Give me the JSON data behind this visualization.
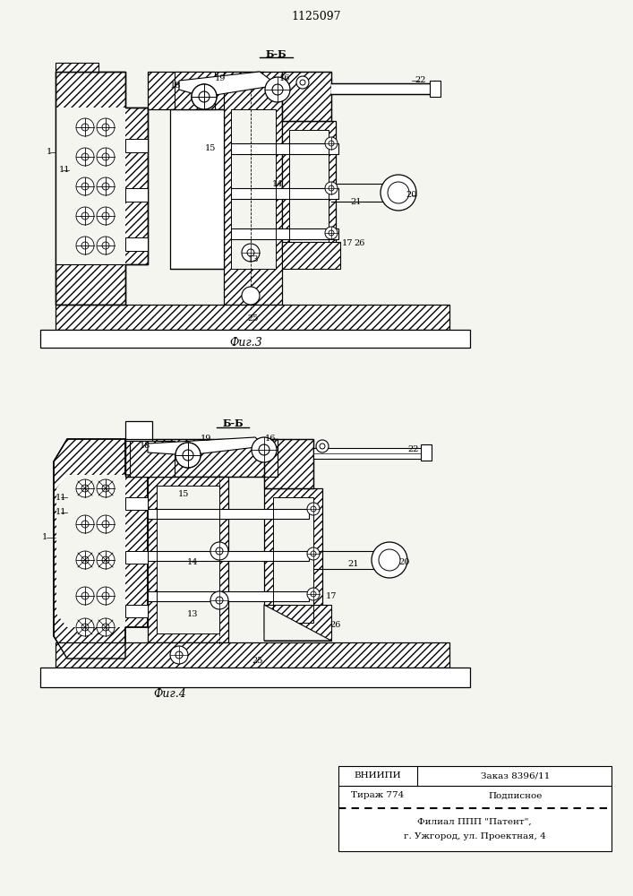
{
  "title": "1125097",
  "fig3_label": "Фиг.3",
  "fig4_label": "Фиг.4",
  "section_label": "Б-Б",
  "footer_line1_left": "ВНИИПИ",
  "footer_line1_right": "Заказ 8396/11",
  "footer_line2_left": "Тираж 774",
  "footer_line2_right": "Подписное",
  "footer_line3": "Филиал ППП \"Патент\",",
  "footer_line4": "г. Ужгород, ул. Проектная, 4",
  "bg_color": "#f5f5f0"
}
